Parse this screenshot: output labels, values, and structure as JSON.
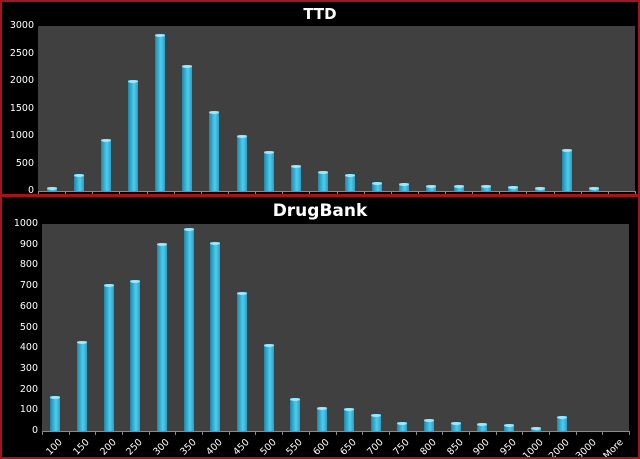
{
  "chart_data": [
    {
      "type": "bar",
      "title": "TTD",
      "xlabel": "",
      "ylabel": "",
      "ylim": [
        0,
        3000
      ],
      "yticks": [
        0,
        500,
        1000,
        1500,
        2000,
        2500,
        3000
      ],
      "grid": false,
      "legend": null,
      "categories": [
        "100",
        "150",
        "200",
        "250",
        "300",
        "350",
        "400",
        "450",
        "500",
        "550",
        "600",
        "650",
        "700",
        "750",
        "800",
        "850",
        "900",
        "950",
        "1000",
        "2000",
        "3000",
        "More"
      ],
      "values": [
        75,
        317,
        954,
        2016,
        2850,
        2283,
        1457,
        1027,
        723,
        468,
        359,
        304,
        164,
        140,
        110,
        104,
        110,
        98,
        80,
        760,
        67,
        0
      ],
      "colors": {
        "bar": "#3ab4d8",
        "plot_bg": "#404040",
        "panel_bg": "#000000",
        "border": "#a3151c"
      }
    },
    {
      "type": "bar",
      "title": "DrugBank",
      "xlabel": "",
      "ylabel": "",
      "ylim": [
        0,
        1000
      ],
      "yticks": [
        0,
        100,
        200,
        300,
        400,
        500,
        600,
        700,
        800,
        900,
        1000
      ],
      "grid": false,
      "legend": null,
      "categories": [
        "100",
        "150",
        "200",
        "250",
        "300",
        "350",
        "400",
        "450",
        "500",
        "550",
        "600",
        "650",
        "700",
        "750",
        "800",
        "850",
        "900",
        "950",
        "1000",
        "2000",
        "3000",
        "More"
      ],
      "values": [
        167,
        435,
        712,
        728,
        907,
        980,
        912,
        673,
        422,
        160,
        117,
        110,
        83,
        45,
        60,
        42,
        37,
        34,
        19,
        73,
        0,
        0
      ],
      "colors": {
        "bar": "#3ab4d8",
        "plot_bg": "#404040",
        "panel_bg": "#000000",
        "border": "#a3151c"
      }
    }
  ]
}
